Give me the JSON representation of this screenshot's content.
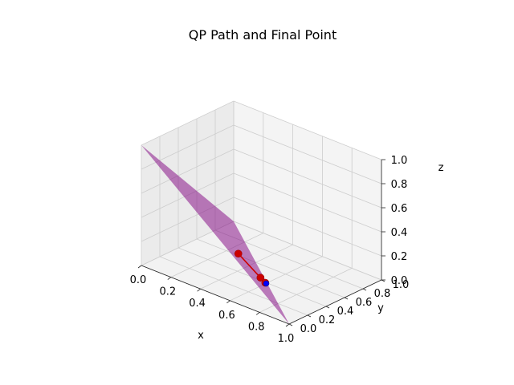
{
  "chart_data": {
    "type": "scatter",
    "projection": "3d",
    "title": "QP Path and Final Point",
    "xlabel": "x",
    "ylabel": "y",
    "zlabel": "z",
    "xlim": [
      0,
      1
    ],
    "ylim": [
      0,
      1
    ],
    "zlim": [
      0,
      1
    ],
    "grid": true,
    "xticks": [
      "0.0",
      "0.2",
      "0.4",
      "0.6",
      "0.8",
      "1.0"
    ],
    "yticks": [
      "0.0",
      "0.2",
      "0.4",
      "0.6",
      "0.8",
      "1.0"
    ],
    "zticks": [
      "0.0",
      "0.2",
      "0.4",
      "0.6",
      "0.8",
      "1.0"
    ],
    "plane": {
      "equation": "x + y + z = 1",
      "color": "#800080",
      "opacity": 0.5,
      "vertices": [
        [
          0,
          0,
          1
        ],
        [
          1,
          0,
          0
        ],
        [
          0,
          1,
          0
        ]
      ]
    },
    "path": {
      "color": "#cc0000",
      "marker_color": "#cc0000",
      "points": [
        [
          0.5,
          0.25,
          0.25
        ],
        [
          0.6,
          0.33,
          0.07
        ],
        [
          0.62,
          0.35,
          0.03
        ]
      ]
    },
    "final_point": {
      "color": "#0000ff",
      "point": [
        0.62,
        0.36,
        0.02
      ]
    }
  }
}
